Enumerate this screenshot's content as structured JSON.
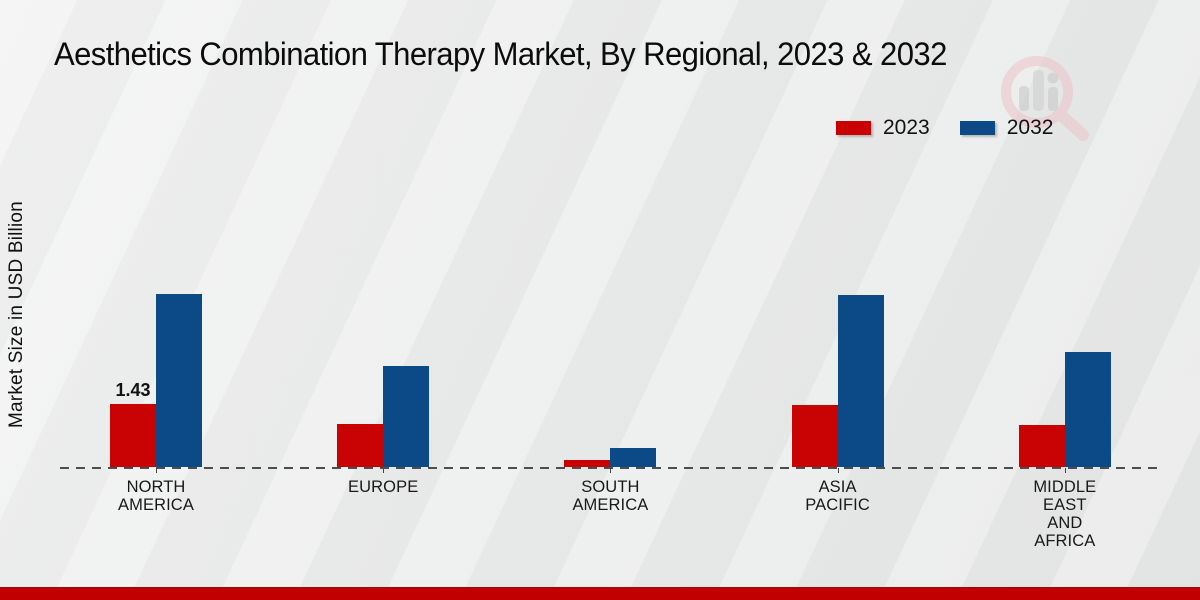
{
  "header": {
    "title": "Aesthetics Combination Therapy Market, By Regional, 2023 & 2032"
  },
  "y_axis": {
    "label": "Market Size in USD Billion"
  },
  "legend": {
    "items": [
      {
        "label": "2023",
        "color": "#c90203"
      },
      {
        "label": "2032",
        "color": "#0b4a86"
      }
    ]
  },
  "chart_data": {
    "type": "bar",
    "categories": [
      "NORTH AMERICA",
      "EUROPE",
      "SOUTH AMERICA",
      "ASIA PACIFIC",
      "MIDDLE EAST AND AFRICA"
    ],
    "series": [
      {
        "name": "2023",
        "color": "#c90203",
        "values": [
          1.43,
          0.98,
          0.15,
          1.42,
          0.95
        ]
      },
      {
        "name": "2032",
        "color": "#0b4a86",
        "values": [
          3.93,
          2.29,
          0.43,
          3.92,
          2.61
        ]
      }
    ],
    "value_labels": [
      {
        "category_index": 0,
        "series_index": 0,
        "text": "1.43"
      }
    ],
    "title": "Aesthetics Combination Therapy Market, By Regional, 2023 & 2032",
    "xlabel": "",
    "ylabel": "Market Size in USD Billion",
    "ylim": [
      0,
      4.5
    ],
    "grid": false,
    "legend_position": "top-right",
    "baseline_style": "dashed"
  },
  "watermark": {
    "name": "magnifier-bar-chart-logo"
  },
  "footer": {
    "bar_color": "#c00001"
  }
}
